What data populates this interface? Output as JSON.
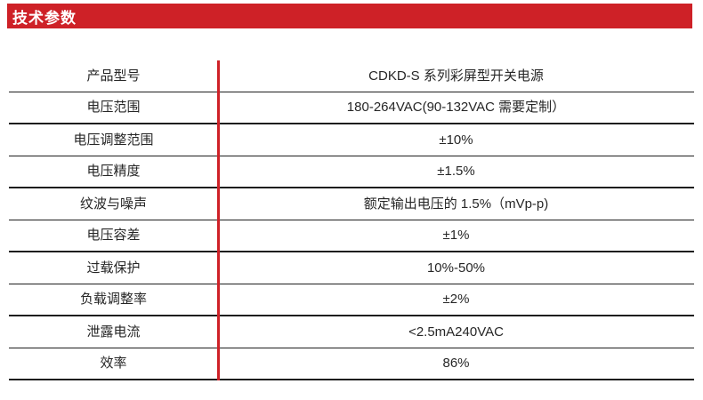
{
  "page_title": "技术参数",
  "colors": {
    "accent_red": "#ce2127",
    "header_row_bg": "#dcdddf",
    "border_dark": "#1e1e1e",
    "text": "#262626"
  },
  "table": {
    "rows": [
      {
        "label": "产品型号",
        "value": "CDKD-S 系列彩屏型开关电源"
      },
      {
        "label": "电压范围",
        "value": "180-264VAC(90-132VAC 需要定制）"
      },
      {
        "label": "电压调整范围",
        "value": "±10%"
      },
      {
        "label": "电压精度",
        "value": "±1.5%"
      },
      {
        "label": "纹波与噪声",
        "value": "额定输出电压的 1.5%（mVp-p)"
      },
      {
        "label": "电压容差",
        "value": "±1%"
      },
      {
        "label": "过载保护",
        "value": "10%-50%"
      },
      {
        "label": "负载调整率",
        "value": "±2%"
      },
      {
        "label": "泄露电流",
        "value": "<2.5mA240VAC"
      },
      {
        "label": "效率",
        "value": "86%"
      }
    ]
  }
}
